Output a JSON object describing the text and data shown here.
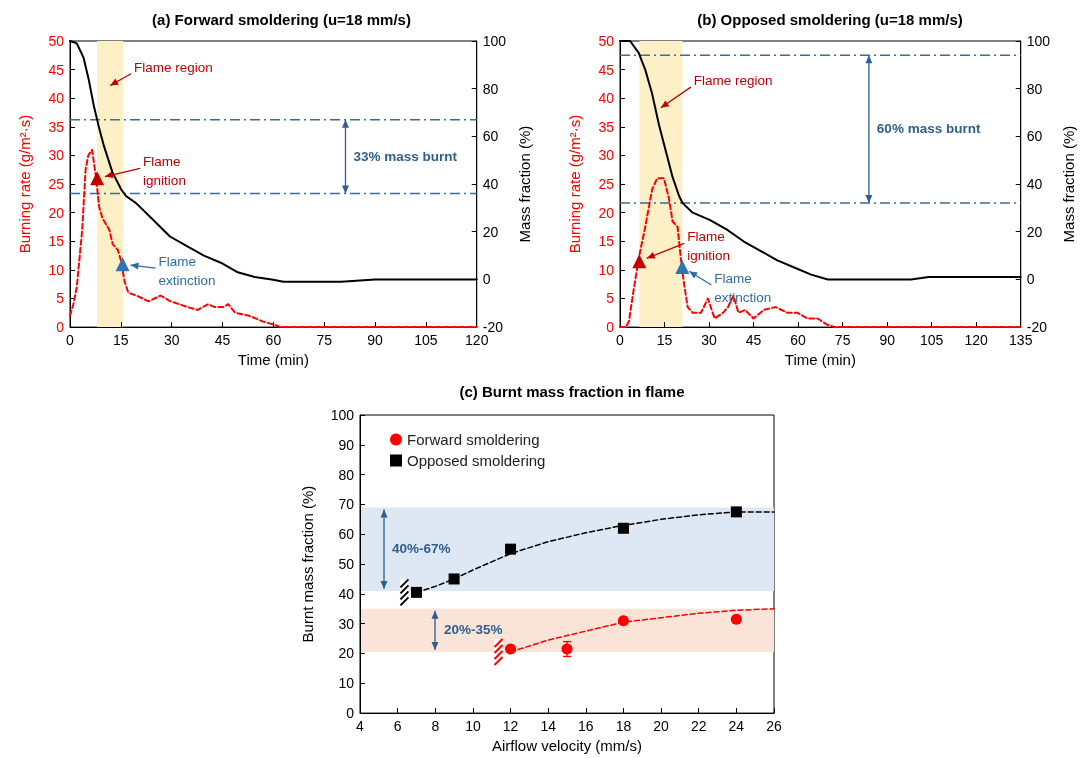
{
  "chart_data": [
    {
      "type": "line",
      "title": "(a) Forward smoldering (u=18 mm/s)",
      "xlabel": "Time (min)",
      "ylabel": "Burning rate (g/m²·s)",
      "y2label": "Mass fraction (%)",
      "xlim": [
        0,
        120
      ],
      "xticks": [
        0,
        15,
        30,
        45,
        60,
        75,
        90,
        105,
        120
      ],
      "ylim": [
        0,
        50
      ],
      "yticks": [
        0,
        5,
        10,
        15,
        20,
        25,
        30,
        35,
        40,
        45,
        50
      ],
      "y2lim": [
        -20,
        100
      ],
      "y2ticks": [
        -20,
        0,
        20,
        40,
        60,
        80,
        100
      ],
      "series": [
        {
          "color": "#ff0000",
          "line_style": "dashed",
          "x": [
            0,
            1,
            2,
            3.6,
            4.6,
            5.4,
            6.5,
            7.6,
            8.6,
            9.6,
            11.6,
            12.6,
            14.1,
            15.1,
            16.1,
            17.2,
            19.7,
            23.2,
            26.7,
            29.7,
            34.7,
            37.7,
            40.7,
            42.7,
            45.2,
            46.7,
            48.7,
            52.8,
            56.8,
            59.8,
            62,
            70,
            80,
            90,
            100,
            110,
            120
          ],
          "values": [
            2,
            4,
            7,
            17,
            27.5,
            30,
            31,
            26.5,
            21,
            19,
            17,
            14.5,
            13.5,
            11.5,
            8,
            6,
            5.5,
            4.5,
            5.5,
            4.5,
            3.5,
            3,
            4,
            3.5,
            3.5,
            4,
            2.5,
            2,
            1,
            0.5,
            0,
            0,
            0,
            0,
            0,
            0,
            0
          ]
        },
        {
          "color": "#000000",
          "axis": "y2",
          "x": [
            0,
            2,
            4,
            5.5,
            7,
            8.5,
            10,
            12.5,
            15,
            16.5,
            19.5,
            24.5,
            29.5,
            34.5,
            39.5,
            44.5,
            49.5,
            54.5,
            59.5,
            63,
            70,
            80,
            90,
            100,
            110,
            120
          ],
          "values": [
            100,
            99,
            93,
            84,
            73,
            64,
            56,
            45,
            38,
            35,
            32,
            25,
            18,
            14,
            10,
            7,
            3,
            1,
            0,
            -1,
            -1,
            -1,
            0,
            0,
            0,
            0
          ]
        },
        {
          "type": "scatter",
          "marker": "triangle",
          "color": "#c00000",
          "x": [
            8
          ],
          "values": [
            26
          ]
        },
        {
          "type": "scatter",
          "marker": "triangle",
          "color": "#2e75b6",
          "x": [
            15.5
          ],
          "values": [
            11
          ]
        }
      ],
      "bands": [
        {
          "axis": "x",
          "from": 8,
          "to": 15.7,
          "color": "#fdefc6"
        }
      ],
      "ref_lines": [
        {
          "axis": "y2",
          "value": 67,
          "color": "#3d6a96",
          "line_style": "dashed"
        },
        {
          "axis": "y2",
          "value": 36,
          "color": "#3d6a96",
          "line_style": "dashed"
        }
      ],
      "annotations": [
        "Flame region",
        {
          "text": "Flame ignition",
          "x": 8,
          "y": 26
        },
        {
          "text": "Flame extinction",
          "x": 15.5,
          "y": 11
        },
        "33% mass burnt"
      ]
    },
    {
      "type": "line",
      "title": "(b) Opposed smoldering (u=18 mm/s)",
      "xlabel": "Time (min)",
      "ylabel": "Burning rate (g/m²·s)",
      "y2label": "Mass fraction (%)",
      "xlim": [
        0,
        135
      ],
      "xticks": [
        0,
        15,
        30,
        45,
        60,
        75,
        90,
        105,
        120,
        135
      ],
      "ylim": [
        0,
        50
      ],
      "yticks": [
        0,
        5,
        10,
        15,
        20,
        25,
        30,
        35,
        40,
        45,
        50
      ],
      "y2lim": [
        -20,
        100
      ],
      "y2ticks": [
        -20,
        0,
        20,
        40,
        60,
        80,
        100
      ],
      "series": [
        {
          "color": "#ff0000",
          "line_style": "dashed",
          "x": [
            0,
            2,
            3,
            4.6,
            6.3,
            8.5,
            10.8,
            12.5,
            14.8,
            16.5,
            17.7,
            19.4,
            20.5,
            21.6,
            22.8,
            24.5,
            27.3,
            29.6,
            31.9,
            34.7,
            36.4,
            38.2,
            39.9,
            42.1,
            45,
            48.4,
            52.4,
            56.4,
            59.8,
            63.2,
            66.6,
            69.5,
            72.3,
            80,
            90,
            100,
            110,
            120,
            135
          ],
          "values": [
            0,
            0,
            1,
            6.5,
            12,
            17.5,
            24,
            26,
            26,
            22.5,
            18.5,
            17.5,
            12,
            7.5,
            3.5,
            2.5,
            2.5,
            5,
            1.5,
            2.5,
            3.5,
            5.5,
            2.5,
            3,
            1.5,
            3,
            3.5,
            2.5,
            2.5,
            1.5,
            1.5,
            0.5,
            0,
            0,
            0,
            0,
            0,
            0,
            0
          ]
        },
        {
          "color": "#000000",
          "axis": "y2",
          "x": [
            0,
            3.4,
            6.3,
            8.5,
            10.8,
            13.1,
            15.4,
            17.7,
            19.9,
            21.1,
            24.5,
            30.2,
            35.9,
            41.6,
            47.3,
            53,
            58.7,
            64.4,
            70,
            76,
            87,
            98,
            104,
            121,
            135
          ],
          "values": [
            100,
            100,
            95,
            88,
            78,
            65,
            54,
            43,
            35,
            32,
            28,
            25,
            21,
            16,
            12,
            8,
            5,
            2,
            0,
            0,
            0,
            0,
            1,
            1,
            1
          ]
        },
        {
          "type": "scatter",
          "marker": "triangle",
          "color": "#c00000",
          "x": [
            6.5
          ],
          "values": [
            11.5
          ]
        },
        {
          "type": "scatter",
          "marker": "triangle",
          "color": "#2e75b6",
          "x": [
            21
          ],
          "values": [
            10.5
          ]
        }
      ],
      "bands": [
        {
          "axis": "x",
          "from": 6.5,
          "to": 21,
          "color": "#fdefc6"
        }
      ],
      "ref_lines": [
        {
          "axis": "y2",
          "value": 94,
          "color": "#3d6a96",
          "line_style": "dashed"
        },
        {
          "axis": "y2",
          "value": 32,
          "color": "#3d6a96",
          "line_style": "dashed"
        }
      ],
      "annotations": [
        "Flame region",
        {
          "text": "Flame ignition",
          "x": 6.5,
          "y": 11.5
        },
        {
          "text": "Flame extinction",
          "x": 21,
          "y": 10.5
        },
        "60% mass burnt"
      ]
    },
    {
      "type": "scatter",
      "title": "(c) Burnt mass fraction in flame",
      "xlabel": "Airflow velocity (mm/s)",
      "ylabel": "Burnt mass fraction (%)",
      "xlim": [
        4,
        26
      ],
      "xticks": [
        4,
        6,
        8,
        10,
        12,
        14,
        16,
        18,
        20,
        22,
        24,
        26
      ],
      "ylim": [
        0,
        100
      ],
      "yticks": [
        0,
        10,
        20,
        30,
        40,
        50,
        60,
        70,
        80,
        90,
        100
      ],
      "legend": "top left",
      "series": [
        {
          "name": "Forward smoldering",
          "color": "#ff0000",
          "marker": "circle",
          "x": [
            12,
            15,
            18,
            24
          ],
          "values": [
            21.5,
            21.5,
            31,
            31.5
          ],
          "errors": [
            null,
            2.5,
            null,
            null
          ]
        },
        {
          "name": "Opposed smoldering",
          "color": "#000000",
          "marker": "square",
          "x": [
            7,
            9,
            12,
            18,
            24
          ],
          "values": [
            40.5,
            45,
            55,
            62,
            67.5
          ]
        },
        {
          "type": "line",
          "color": "#ff0000",
          "line_style": "dashed",
          "x": [
            12,
            13,
            14,
            15,
            16,
            18,
            20,
            22,
            24,
            26
          ],
          "values": [
            20.5,
            22.5,
            24.5,
            26,
            27.5,
            30.5,
            32,
            33.5,
            34.5,
            35
          ]
        },
        {
          "type": "line",
          "color": "#000000",
          "line_style": "dashed",
          "x": [
            7,
            8,
            9,
            10,
            12,
            14,
            16,
            18,
            20,
            22,
            24,
            26
          ],
          "values": [
            40.5,
            42.5,
            45,
            48,
            53.5,
            57.5,
            60.5,
            63,
            65,
            66.5,
            67.5,
            67.5
          ]
        }
      ],
      "bands": [
        {
          "axis": "y",
          "from": 41,
          "to": 69,
          "color": "#dde8f4",
          "label": "40%-67%"
        },
        {
          "axis": "y",
          "from": 20.5,
          "to": 35,
          "color": "#fae3d7",
          "label": "20%-35%"
        }
      ]
    }
  ]
}
